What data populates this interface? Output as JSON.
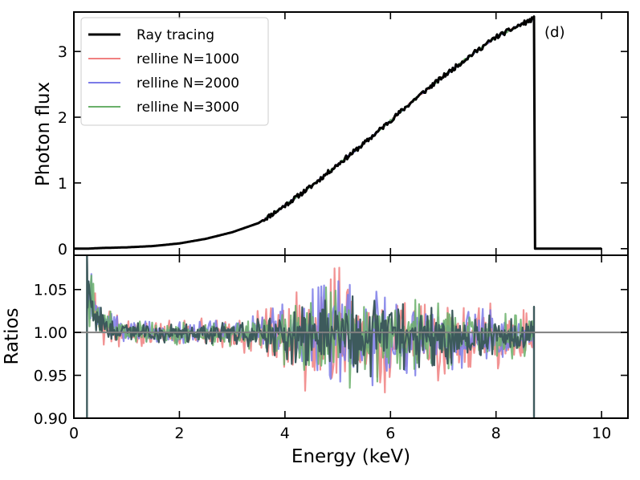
{
  "chart_data": [
    {
      "type": "line",
      "panel": "top",
      "ylabel": "Photon flux",
      "annotation": "(d)",
      "xlim": [
        0,
        10.5
      ],
      "ylim": [
        -0.1,
        3.6
      ],
      "yticks": [
        0,
        1,
        2,
        3
      ],
      "yticklabels": [
        "0",
        "1",
        "2",
        "3"
      ],
      "legend_position": "upper-left",
      "series": [
        {
          "name": "Ray tracing",
          "color": "#000000",
          "x": [
            0.0,
            0.25,
            0.5,
            1.0,
            1.5,
            2.0,
            2.5,
            3.0,
            3.5,
            3.9,
            4.5,
            5.0,
            5.5,
            6.0,
            6.5,
            7.0,
            7.5,
            8.0,
            8.5,
            8.72,
            8.73,
            10.0
          ],
          "y": [
            0.0,
            0.0,
            0.01,
            0.02,
            0.04,
            0.08,
            0.15,
            0.25,
            0.39,
            0.6,
            0.95,
            1.28,
            1.6,
            1.95,
            2.3,
            2.62,
            2.93,
            3.22,
            3.42,
            3.5,
            0.0,
            0.0
          ]
        },
        {
          "name": "relline N=1000",
          "color": "#f08080",
          "x": [
            0.0,
            0.25,
            0.5,
            1.0,
            1.5,
            2.0,
            2.5,
            3.0,
            3.5,
            3.9,
            4.5,
            5.0,
            5.5,
            6.0,
            6.5,
            7.0,
            7.5,
            8.0,
            8.5,
            8.72,
            8.73,
            10.0
          ],
          "y": [
            0.0,
            0.0,
            0.01,
            0.02,
            0.04,
            0.08,
            0.15,
            0.25,
            0.39,
            0.6,
            0.95,
            1.28,
            1.6,
            1.95,
            2.3,
            2.62,
            2.93,
            3.22,
            3.42,
            3.5,
            0.0,
            0.0
          ]
        },
        {
          "name": "relline N=2000",
          "color": "#7b7be8",
          "x": [
            0.0,
            0.25,
            0.5,
            1.0,
            1.5,
            2.0,
            2.5,
            3.0,
            3.5,
            3.9,
            4.5,
            5.0,
            5.5,
            6.0,
            6.5,
            7.0,
            7.5,
            8.0,
            8.5,
            8.72,
            8.73,
            10.0
          ],
          "y": [
            0.0,
            0.0,
            0.01,
            0.02,
            0.04,
            0.08,
            0.15,
            0.25,
            0.39,
            0.6,
            0.95,
            1.28,
            1.6,
            1.95,
            2.3,
            2.62,
            2.93,
            3.22,
            3.42,
            3.5,
            0.0,
            0.0
          ]
        },
        {
          "name": "relline N=3000",
          "color": "#6ab06a",
          "x": [
            0.0,
            0.25,
            0.5,
            1.0,
            1.5,
            2.0,
            2.5,
            3.0,
            3.5,
            3.9,
            4.5,
            5.0,
            5.5,
            6.0,
            6.5,
            7.0,
            7.5,
            8.0,
            8.5,
            8.72,
            8.73,
            10.0
          ],
          "y": [
            0.0,
            0.0,
            0.01,
            0.02,
            0.04,
            0.08,
            0.15,
            0.25,
            0.39,
            0.6,
            0.95,
            1.28,
            1.6,
            1.95,
            2.3,
            2.62,
            2.93,
            3.22,
            3.42,
            3.5,
            0.0,
            0.0
          ]
        }
      ]
    },
    {
      "type": "line",
      "panel": "bottom",
      "xlabel": "Energy (keV)",
      "ylabel": "Ratios",
      "xlim": [
        0,
        10.5
      ],
      "ylim": [
        0.9,
        1.09
      ],
      "xticks": [
        0,
        2,
        4,
        6,
        8,
        10
      ],
      "xticklabels": [
        "0",
        "2",
        "4",
        "6",
        "8",
        "10"
      ],
      "yticks": [
        0.9,
        0.95,
        1.0,
        1.05
      ],
      "yticklabels": [
        "0.90",
        "0.95",
        "1.00",
        "1.05"
      ],
      "reference_line": {
        "y": 1.0,
        "color": "#808080"
      },
      "x_range": [
        0.25,
        8.72
      ],
      "envelope": {
        "x": [
          0.25,
          0.4,
          0.6,
          0.8,
          1.0,
          1.5,
          2.0,
          2.5,
          3.0,
          3.5,
          4.0,
          4.5,
          5.0,
          5.5,
          6.0,
          6.5,
          7.0,
          7.5,
          8.0,
          8.5,
          8.7
        ],
        "upper": [
          1.09,
          1.05,
          1.03,
          1.02,
          1.015,
          1.012,
          1.012,
          1.013,
          1.015,
          1.02,
          1.035,
          1.05,
          1.06,
          1.05,
          1.045,
          1.04,
          1.035,
          1.03,
          1.025,
          1.02,
          1.02
        ],
        "lower": [
          1.0,
          0.995,
          0.99,
          0.988,
          0.986,
          0.986,
          0.985,
          0.984,
          0.983,
          0.978,
          0.96,
          0.94,
          0.93,
          0.935,
          0.945,
          0.95,
          0.955,
          0.96,
          0.965,
          0.97,
          0.975
        ]
      },
      "series": [
        {
          "name": "relline N=1000",
          "color": "#f08080",
          "spread": 1.25
        },
        {
          "name": "relline N=2000",
          "color": "#7b7be8",
          "spread": 1.0
        },
        {
          "name": "relline N=3000",
          "color": "#6ab06a",
          "spread": 0.95
        },
        {
          "name": "Ray tracing",
          "color": "#3d5a5c",
          "spread": 0.8
        }
      ]
    }
  ]
}
